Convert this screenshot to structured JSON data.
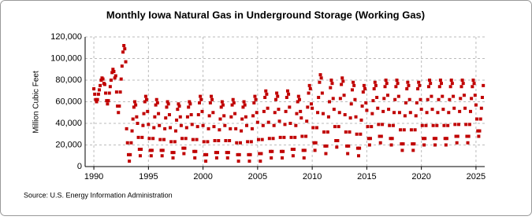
{
  "chart_data": {
    "type": "scatter",
    "title": "Monthly Iowa Natural Gas in Underground Storage (Working Gas)",
    "y_label": "Million Cubic Feet",
    "source": "Source: U.S. Energy Information Administration",
    "color": "#c00000",
    "grid": true,
    "xlim": [
      1989.2,
      2025.8
    ],
    "xticks": [
      1990,
      1995,
      2000,
      2005,
      2010,
      2015,
      2020,
      2025
    ],
    "ylim": [
      0,
      120000
    ],
    "yticks": [
      {
        "value": 0,
        "label": "0"
      },
      {
        "value": 20000,
        "label": "20,000"
      },
      {
        "value": 40000,
        "label": "40,000"
      },
      {
        "value": 60000,
        "label": "60,000"
      },
      {
        "value": 80000,
        "label": "80,000"
      },
      {
        "value": 100000,
        "label": "100,000"
      },
      {
        "value": 120000,
        "label": "120,000"
      }
    ],
    "x": [
      1990.0,
      1990.08,
      1990.17,
      1990.25,
      1990.33,
      1990.42,
      1990.5,
      1990.58,
      1990.67,
      1990.75,
      1990.83,
      1990.92,
      1991.0,
      1991.08,
      1991.17,
      1991.25,
      1991.33,
      1991.42,
      1991.5,
      1991.58,
      1991.67,
      1991.75,
      1991.83,
      1991.92,
      1992.0,
      1992.08,
      1992.17,
      1992.25,
      1992.33,
      1992.42,
      1992.5,
      1992.58,
      1992.67,
      1992.75,
      1992.83,
      1992.92,
      1993.0,
      1993.08,
      1993.17,
      1993.25,
      1993.33,
      1993.42,
      1993.5,
      1993.58,
      1993.67,
      1993.75,
      1993.83,
      1993.92,
      1994.0,
      1994.08,
      1994.17,
      1994.25,
      1994.33,
      1994.42,
      1994.5,
      1994.58,
      1994.67,
      1994.75,
      1994.83,
      1994.92,
      1995.0,
      1995.08,
      1995.17,
      1995.25,
      1995.33,
      1995.42,
      1995.5,
      1995.58,
      1995.67,
      1995.75,
      1995.83,
      1995.92,
      1996.0,
      1996.08,
      1996.17,
      1996.25,
      1996.33,
      1996.42,
      1996.5,
      1996.58,
      1996.67,
      1996.75,
      1996.83,
      1996.92,
      1997.0,
      1997.08,
      1997.17,
      1997.25,
      1997.33,
      1997.42,
      1997.5,
      1997.58,
      1997.67,
      1997.75,
      1997.83,
      1997.92,
      1998.0,
      1998.08,
      1998.17,
      1998.25,
      1998.33,
      1998.42,
      1998.5,
      1998.58,
      1998.67,
      1998.75,
      1998.83,
      1998.92,
      1999.0,
      1999.08,
      1999.17,
      1999.25,
      1999.33,
      1999.42,
      1999.5,
      1999.58,
      1999.67,
      1999.75,
      1999.83,
      1999.92,
      2000.0,
      2000.08,
      2000.17,
      2000.25,
      2000.33,
      2000.42,
      2000.5,
      2000.58,
      2000.67,
      2000.75,
      2000.83,
      2000.92,
      2001.0,
      2001.08,
      2001.17,
      2001.25,
      2001.33,
      2001.42,
      2001.5,
      2001.58,
      2001.67,
      2001.75,
      2001.83,
      2001.92,
      2002.0,
      2002.08,
      2002.17,
      2002.25,
      2002.33,
      2002.42,
      2002.5,
      2002.58,
      2002.67,
      2002.75,
      2002.83,
      2002.92,
      2003.0,
      2003.08,
      2003.17,
      2003.25,
      2003.33,
      2003.42,
      2003.5,
      2003.58,
      2003.67,
      2003.75,
      2003.83,
      2003.92,
      2004.0,
      2004.08,
      2004.17,
      2004.25,
      2004.33,
      2004.42,
      2004.5,
      2004.58,
      2004.67,
      2004.75,
      2004.83,
      2004.92,
      2005.0,
      2005.08,
      2005.17,
      2005.25,
      2005.33,
      2005.42,
      2005.5,
      2005.58,
      2005.67,
      2005.75,
      2005.83,
      2005.92,
      2006.0,
      2006.08,
      2006.17,
      2006.25,
      2006.33,
      2006.42,
      2006.5,
      2006.58,
      2006.67,
      2006.75,
      2006.83,
      2006.92,
      2007.0,
      2007.08,
      2007.17,
      2007.25,
      2007.33,
      2007.42,
      2007.5,
      2007.58,
      2007.67,
      2007.75,
      2007.83,
      2007.92,
      2008.0,
      2008.08,
      2008.17,
      2008.25,
      2008.33,
      2008.42,
      2008.5,
      2008.58,
      2008.67,
      2008.75,
      2008.83,
      2008.92,
      2009.0,
      2009.08,
      2009.17,
      2009.25,
      2009.33,
      2009.42,
      2009.5,
      2009.58,
      2009.67,
      2009.75,
      2009.83,
      2009.92,
      2010.0,
      2010.08,
      2010.17,
      2010.25,
      2010.33,
      2010.42,
      2010.5,
      2010.58,
      2010.67,
      2010.75,
      2010.83,
      2010.92,
      2011.0,
      2011.08,
      2011.17,
      2011.25,
      2011.33,
      2011.42,
      2011.5,
      2011.58,
      2011.67,
      2011.75,
      2011.83,
      2011.92,
      2012.0,
      2012.08,
      2012.17,
      2012.25,
      2012.33,
      2012.42,
      2012.5,
      2012.58,
      2012.67,
      2012.75,
      2012.83,
      2012.92,
      2013.0,
      2013.08,
      2013.17,
      2013.25,
      2013.33,
      2013.42,
      2013.5,
      2013.58,
      2013.67,
      2013.75,
      2013.83,
      2013.92,
      2014.0,
      2014.08,
      2014.17,
      2014.25,
      2014.33,
      2014.42,
      2014.5,
      2014.58,
      2014.67,
      2014.75,
      2014.83,
      2014.92,
      2015.0,
      2015.08,
      2015.17,
      2015.25,
      2015.33,
      2015.42,
      2015.5,
      2015.58,
      2015.67,
      2015.75,
      2015.83,
      2015.92,
      2016.0,
      2016.08,
      2016.17,
      2016.25,
      2016.33,
      2016.42,
      2016.5,
      2016.58,
      2016.67,
      2016.75,
      2016.83,
      2016.92,
      2017.0,
      2017.08,
      2017.17,
      2017.25,
      2017.33,
      2017.42,
      2017.5,
      2017.58,
      2017.67,
      2017.75,
      2017.83,
      2017.92,
      2018.0,
      2018.08,
      2018.17,
      2018.25,
      2018.33,
      2018.42,
      2018.5,
      2018.58,
      2018.67,
      2018.75,
      2018.83,
      2018.92,
      2019.0,
      2019.08,
      2019.17,
      2019.25,
      2019.33,
      2019.42,
      2019.5,
      2019.58,
      2019.67,
      2019.75,
      2019.83,
      2019.92,
      2020.0,
      2020.08,
      2020.17,
      2020.25,
      2020.33,
      2020.42,
      2020.5,
      2020.58,
      2020.67,
      2020.75,
      2020.83,
      2020.92,
      2021.0,
      2021.08,
      2021.17,
      2021.25,
      2021.33,
      2021.42,
      2021.5,
      2021.58,
      2021.67,
      2021.75,
      2021.83,
      2021.92,
      2022.0,
      2022.08,
      2022.17,
      2022.25,
      2022.33,
      2022.42,
      2022.5,
      2022.58,
      2022.67,
      2022.75,
      2022.83,
      2022.92,
      2023.0,
      2023.08,
      2023.17,
      2023.25,
      2023.33,
      2023.42,
      2023.5,
      2023.58,
      2023.67,
      2023.75,
      2023.83,
      2023.92,
      2024.0,
      2024.08,
      2024.17,
      2024.25,
      2024.33,
      2024.42,
      2024.5,
      2024.58,
      2024.67,
      2024.75,
      2024.83,
      2024.92,
      2025.0,
      2025.08,
      2025.17,
      2025.25,
      2025.33,
      2025.42,
      2025.5,
      2025.58,
      2025.67
    ],
    "values": [
      72000,
      67000,
      62000,
      60000,
      62000,
      67000,
      71000,
      75000,
      80000,
      82000,
      81000,
      77000,
      76000,
      68000,
      61000,
      58000,
      61000,
      68000,
      74000,
      80000,
      87000,
      90000,
      88000,
      82000,
      84000,
      69000,
      56000,
      50000,
      56000,
      69000,
      81000,
      93000,
      106000,
      112000,
      109000,
      97000,
      35000,
      22000,
      11000,
      5000,
      11000,
      22000,
      33000,
      44000,
      55000,
      60000,
      57000,
      46000,
      40000,
      27000,
      16000,
      10000,
      16000,
      27000,
      38000,
      49000,
      60000,
      65000,
      62000,
      51000,
      39000,
      26000,
      15000,
      10000,
      15000,
      26000,
      36000,
      46000,
      57000,
      62000,
      59000,
      49000,
      38000,
      25000,
      15000,
      10000,
      15000,
      25000,
      35000,
      45000,
      55000,
      60000,
      58000,
      48000,
      36000,
      23000,
      13000,
      8000,
      13000,
      23000,
      33000,
      43000,
      53000,
      58000,
      56000,
      46000,
      38000,
      26000,
      17000,
      12000,
      17000,
      26000,
      36000,
      46000,
      55000,
      60000,
      58000,
      48000,
      39000,
      25000,
      14000,
      8000,
      14000,
      25000,
      37000,
      48000,
      59000,
      65000,
      62000,
      51000,
      38000,
      23000,
      11000,
      5000,
      11000,
      23000,
      35000,
      47000,
      59000,
      65000,
      62000,
      50000,
      37000,
      24000,
      13000,
      8000,
      13000,
      24000,
      34000,
      44000,
      55000,
      60000,
      57000,
      47000,
      38000,
      24000,
      13000,
      8000,
      13000,
      24000,
      35000,
      46000,
      57000,
      62000,
      59000,
      49000,
      35000,
      22000,
      11000,
      5000,
      11000,
      22000,
      33000,
      44000,
      55000,
      60000,
      57000,
      46000,
      38000,
      23000,
      11000,
      5000,
      11000,
      23000,
      35000,
      47000,
      59000,
      65000,
      62000,
      50000,
      41000,
      25000,
      12000,
      5000,
      12000,
      25000,
      38000,
      51000,
      64000,
      70000,
      67000,
      54000,
      41000,
      26000,
      14000,
      8000,
      14000,
      26000,
      38000,
      50000,
      62000,
      68000,
      65000,
      53000,
      42000,
      27000,
      14000,
      8000,
      14000,
      27000,
      39000,
      51000,
      64000,
      70000,
      67000,
      55000,
      40000,
      27000,
      16000,
      10000,
      16000,
      27000,
      38000,
      49000,
      60000,
      65000,
      62000,
      51000,
      45000,
      28000,
      15000,
      8000,
      15000,
      28000,
      42000,
      55000,
      68000,
      75000,
      72000,
      58000,
      54000,
      36000,
      22000,
      15000,
      22000,
      36000,
      50000,
      64000,
      78000,
      85000,
      82000,
      68000,
      49000,
      32000,
      19000,
      12000,
      19000,
      32000,
      46000,
      60000,
      73000,
      80000,
      77000,
      63000,
      53000,
      37000,
      24000,
      18000,
      24000,
      37000,
      50000,
      63000,
      76000,
      82000,
      79000,
      66000,
      48000,
      32000,
      19000,
      12000,
      19000,
      32000,
      45000,
      58000,
      71000,
      78000,
      75000,
      62000,
      46000,
      30000,
      17000,
      10000,
      17000,
      30000,
      43000,
      56000,
      69000,
      75000,
      72000,
      59000,
      52000,
      37000,
      26000,
      20000,
      26000,
      37000,
      49000,
      61000,
      72000,
      78000,
      75000,
      64000,
      54000,
      39000,
      28000,
      22000,
      28000,
      39000,
      51000,
      63000,
      74000,
      80000,
      77000,
      66000,
      53000,
      38000,
      26000,
      20000,
      26000,
      38000,
      50000,
      62000,
      74000,
      80000,
      77000,
      65000,
      50000,
      34000,
      21000,
      15000,
      21000,
      34000,
      47000,
      59000,
      72000,
      78000,
      75000,
      62000,
      50000,
      34000,
      21000,
      15000,
      21000,
      34000,
      47000,
      59000,
      72000,
      78000,
      75000,
      62000,
      53000,
      38000,
      26000,
      20000,
      26000,
      38000,
      50000,
      62000,
      74000,
      80000,
      77000,
      65000,
      53000,
      38000,
      26000,
      20000,
      26000,
      38000,
      50000,
      62000,
      74000,
      80000,
      77000,
      65000,
      53000,
      38000,
      26000,
      20000,
      26000,
      38000,
      50000,
      62000,
      74000,
      80000,
      77000,
      65000,
      54000,
      39000,
      28000,
      22000,
      28000,
      39000,
      51000,
      63000,
      74000,
      80000,
      77000,
      66000,
      54000,
      39000,
      28000,
      22000,
      28000,
      39000,
      51000,
      63000,
      74000,
      80000,
      77000,
      66000,
      57000,
      44000,
      33000,
      28000,
      33000,
      44000,
      54000,
      64000,
      75000
    ]
  }
}
